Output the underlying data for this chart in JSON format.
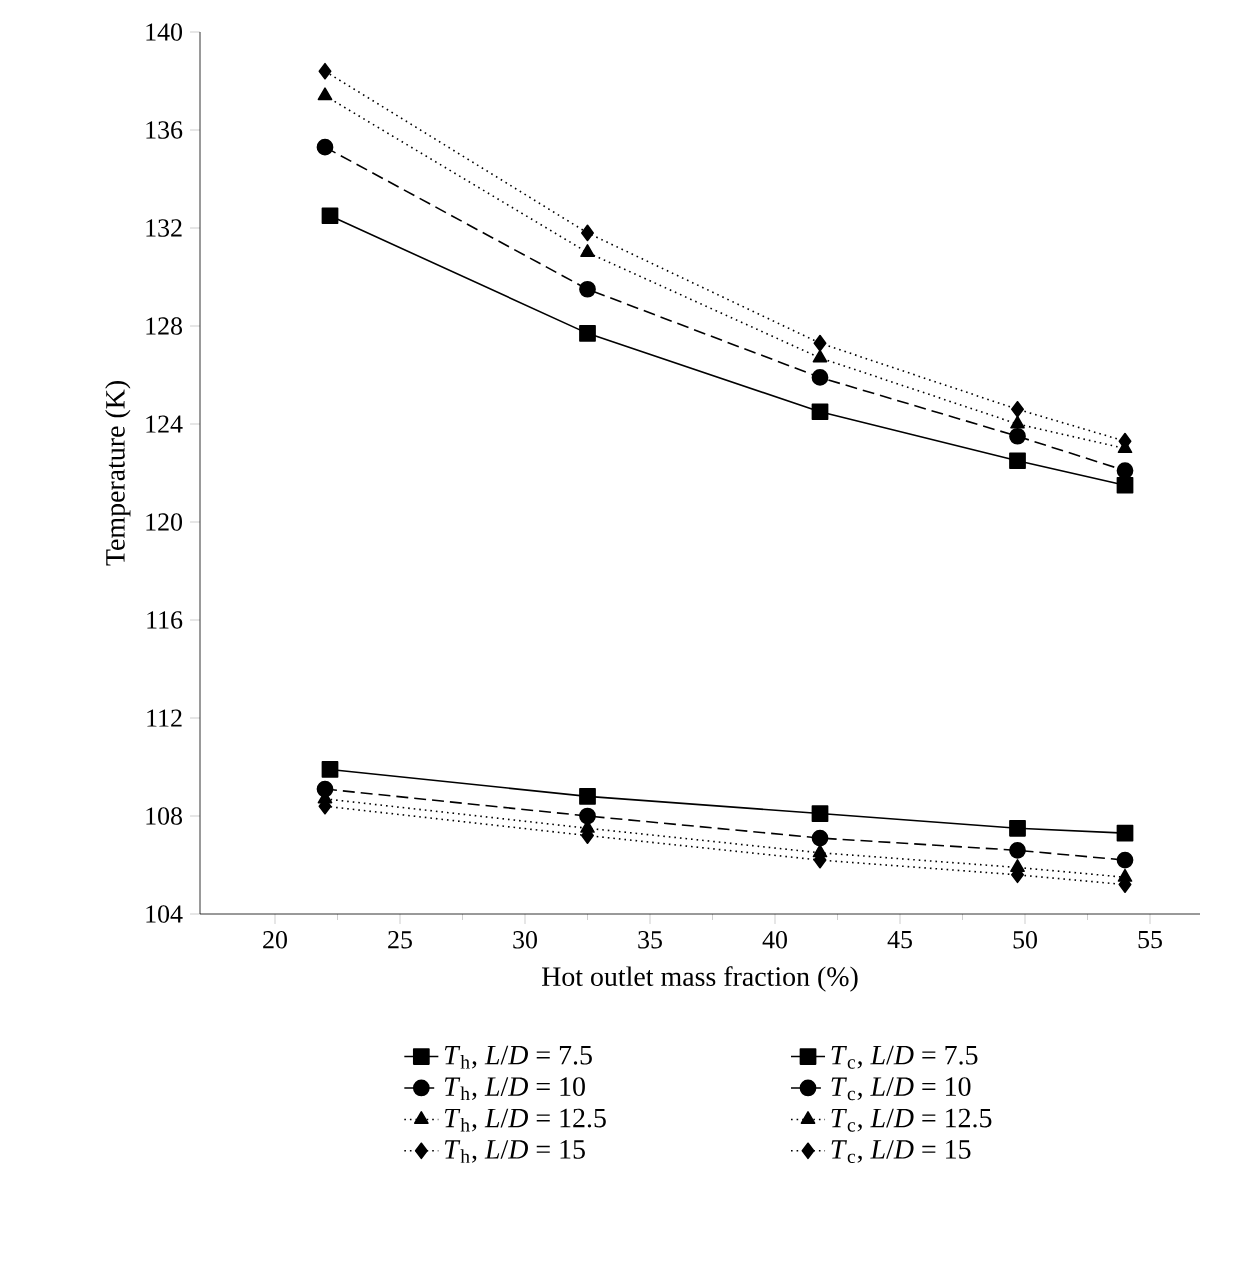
{
  "chart_data": {
    "type": "line",
    "xlabel": "Hot outlet mass fraction (%)",
    "ylabel": "Temperature (K)",
    "xlim": [
      17,
      57
    ],
    "xticks": [
      20,
      25,
      30,
      35,
      40,
      45,
      50,
      55
    ],
    "ylim": [
      104,
      140
    ],
    "yticks": [
      104,
      108,
      112,
      116,
      120,
      124,
      128,
      132,
      136,
      140
    ],
    "grid": false,
    "legend": "bottom",
    "series": [
      {
        "name": "*T*$_{h}$, *L*/*D* = 7.5",
        "color": "#000000",
        "x": [
          22.2,
          32.5,
          41.8,
          49.7,
          54.0
        ],
        "values": [
          132.5,
          127.7,
          124.5,
          122.5,
          121.5
        ],
        "marker": "square",
        "line_style": "solid"
      },
      {
        "name": "*T*$_{h}$, *L*/*D* = 10",
        "color": "#000000",
        "x": [
          22.0,
          32.5,
          41.8,
          49.7,
          54.0
        ],
        "values": [
          135.3,
          129.5,
          125.9,
          123.5,
          122.1
        ],
        "marker": "circle",
        "line_style": "dashed"
      },
      {
        "name": "*T*$_{h}$, *L*/*D* = 12.5",
        "color": "#000000",
        "x": [
          22.0,
          32.5,
          41.8,
          49.7,
          54.0
        ],
        "values": [
          137.4,
          131.0,
          126.7,
          124.0,
          123.0
        ],
        "marker": "triangle",
        "line_style": "dotted"
      },
      {
        "name": "*T*$_{h}$, *L*/*D* = 15",
        "color": "#000000",
        "x": [
          22.0,
          32.5,
          41.8,
          49.7,
          54.0
        ],
        "values": [
          138.4,
          131.8,
          127.3,
          124.6,
          123.3
        ],
        "marker": "diamond",
        "line_style": "dotted"
      },
      {
        "name": "*T*$_{c}$, *L*/*D* = 7.5",
        "color": "#000000",
        "x": [
          22.2,
          32.5,
          41.8,
          49.7,
          54.0
        ],
        "values": [
          109.9,
          108.8,
          108.1,
          107.5,
          107.3
        ],
        "marker": "square",
        "line_style": "solid"
      },
      {
        "name": "*T*$_{c}$, *L*/*D* = 10",
        "color": "#000000",
        "x": [
          22.0,
          32.5,
          41.8,
          49.7,
          54.0
        ],
        "values": [
          109.1,
          108.0,
          107.1,
          106.6,
          106.2
        ],
        "marker": "circle",
        "line_style": "dashed"
      },
      {
        "name": "*T*$_{c}$, *L*/*D* = 12.5",
        "color": "#000000",
        "x": [
          22.0,
          32.5,
          41.8,
          49.7,
          54.0
        ],
        "values": [
          108.7,
          107.5,
          106.5,
          105.9,
          105.5
        ],
        "marker": "triangle",
        "line_style": "dotted"
      },
      {
        "name": "*T*$_{c}$, *L*/*D* = 15",
        "color": "#000000",
        "x": [
          22.0,
          32.5,
          41.8,
          49.7,
          54.0
        ],
        "values": [
          108.4,
          107.2,
          106.2,
          105.6,
          105.2
        ],
        "marker": "diamond",
        "line_style": "dotted"
      }
    ]
  }
}
